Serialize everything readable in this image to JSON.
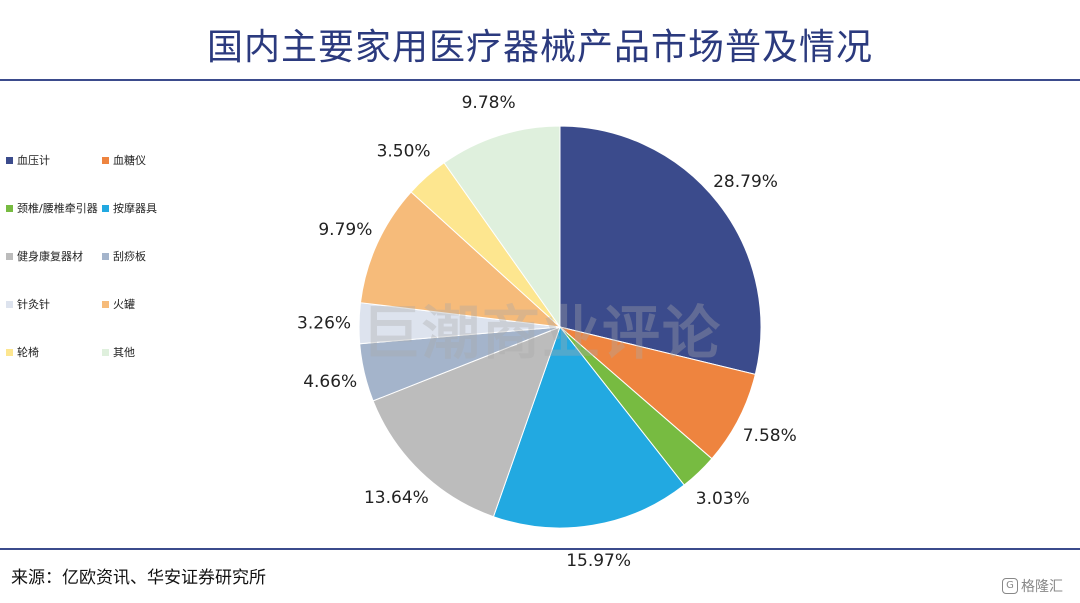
{
  "title": "国内主要家用医疗器械产品市场普及情况",
  "source": "来源：亿欧资讯、华安证券研究所",
  "watermark": "巨潮商业评论",
  "badge": {
    "icon": "logo-icon",
    "text": "格隆汇"
  },
  "chart_data": {
    "type": "pie",
    "start_angle": "12 o'clock, clockwise",
    "legend_position": "left",
    "slices": [
      {
        "label": "血压计",
        "value": 28.79,
        "display": "28.79%",
        "color": "#3b4b8c"
      },
      {
        "label": "血糖仪",
        "value": 7.58,
        "display": "7.58%",
        "color": "#ee843f"
      },
      {
        "label": "颈椎/腰椎牵引器",
        "value": 3.03,
        "display": "3.03%",
        "color": "#77bb41"
      },
      {
        "label": "按摩器具",
        "value": 15.97,
        "display": "15.97%",
        "color": "#22a9e1"
      },
      {
        "label": "健身康复器材",
        "value": 13.64,
        "display": "13.64%",
        "color": "#bcbcbc"
      },
      {
        "label": "刮痧板",
        "value": 4.66,
        "display": "4.66%",
        "color": "#a4b4cb"
      },
      {
        "label": "针灸针",
        "value": 3.26,
        "display": "3.26%",
        "color": "#dde3ee"
      },
      {
        "label": "火罐",
        "value": 9.79,
        "display": "9.79%",
        "color": "#f6bb7a"
      },
      {
        "label": "轮椅",
        "value": 3.5,
        "display": "3.50%",
        "color": "#fde68f"
      },
      {
        "label": "其他",
        "value": 9.78,
        "display": "9.78%",
        "color": "#dff0dd"
      }
    ]
  }
}
